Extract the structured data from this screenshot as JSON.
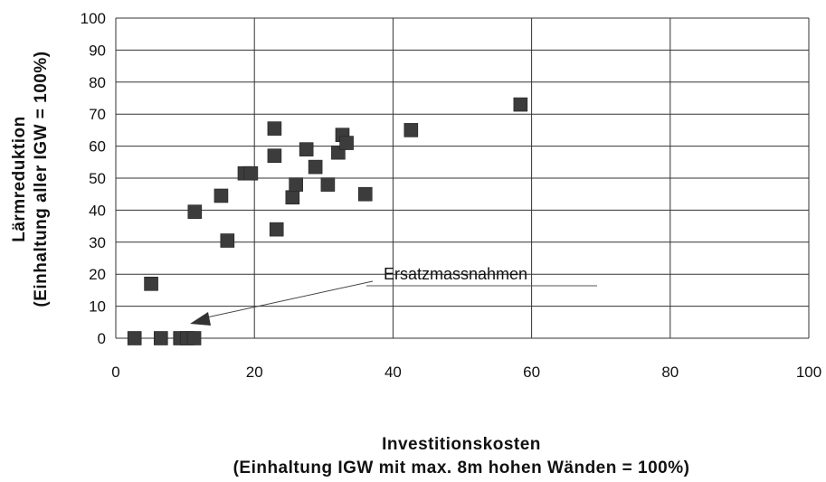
{
  "chart_data": {
    "type": "scatter",
    "title": "",
    "xlabel_line1": "Investitionskosten",
    "xlabel_line2": "(Einhaltung IGW mit max. 8m hohen Wänden = 100%)",
    "ylabel_line1": "Lärmreduktion",
    "ylabel_line2": "(Einhaltung aller IGW = 100%)",
    "xlim": [
      0,
      100
    ],
    "ylim": [
      0,
      100
    ],
    "x_ticks": [
      "0",
      "20",
      "40",
      "60",
      "80",
      "100"
    ],
    "y_ticks": [
      "0",
      "10",
      "20",
      "30",
      "40",
      "50",
      "60",
      "70",
      "80",
      "90",
      "100"
    ],
    "grid": true,
    "legend": "none",
    "marker_color": "#3c3c3c",
    "points": [
      {
        "x": 2.7,
        "y": 0
      },
      {
        "x": 6.5,
        "y": 0
      },
      {
        "x": 9.3,
        "y": 0
      },
      {
        "x": 10.3,
        "y": 0
      },
      {
        "x": 11.3,
        "y": 0
      },
      {
        "x": 5.1,
        "y": 17
      },
      {
        "x": 11.4,
        "y": 39.5
      },
      {
        "x": 15.2,
        "y": 44.5
      },
      {
        "x": 16.1,
        "y": 30.5
      },
      {
        "x": 18.6,
        "y": 51.5
      },
      {
        "x": 19.5,
        "y": 51.5
      },
      {
        "x": 22.9,
        "y": 65.5
      },
      {
        "x": 22.9,
        "y": 57
      },
      {
        "x": 23.2,
        "y": 34
      },
      {
        "x": 25.5,
        "y": 44
      },
      {
        "x": 26.0,
        "y": 48
      },
      {
        "x": 27.5,
        "y": 59
      },
      {
        "x": 28.8,
        "y": 53.5
      },
      {
        "x": 30.6,
        "y": 48
      },
      {
        "x": 32.1,
        "y": 58
      },
      {
        "x": 32.7,
        "y": 63.5
      },
      {
        "x": 33.3,
        "y": 61
      },
      {
        "x": 36.0,
        "y": 45
      },
      {
        "x": 42.6,
        "y": 65
      },
      {
        "x": 58.4,
        "y": 73
      }
    ],
    "annotation": {
      "text": "Ersatzmassnahmen"
    }
  }
}
